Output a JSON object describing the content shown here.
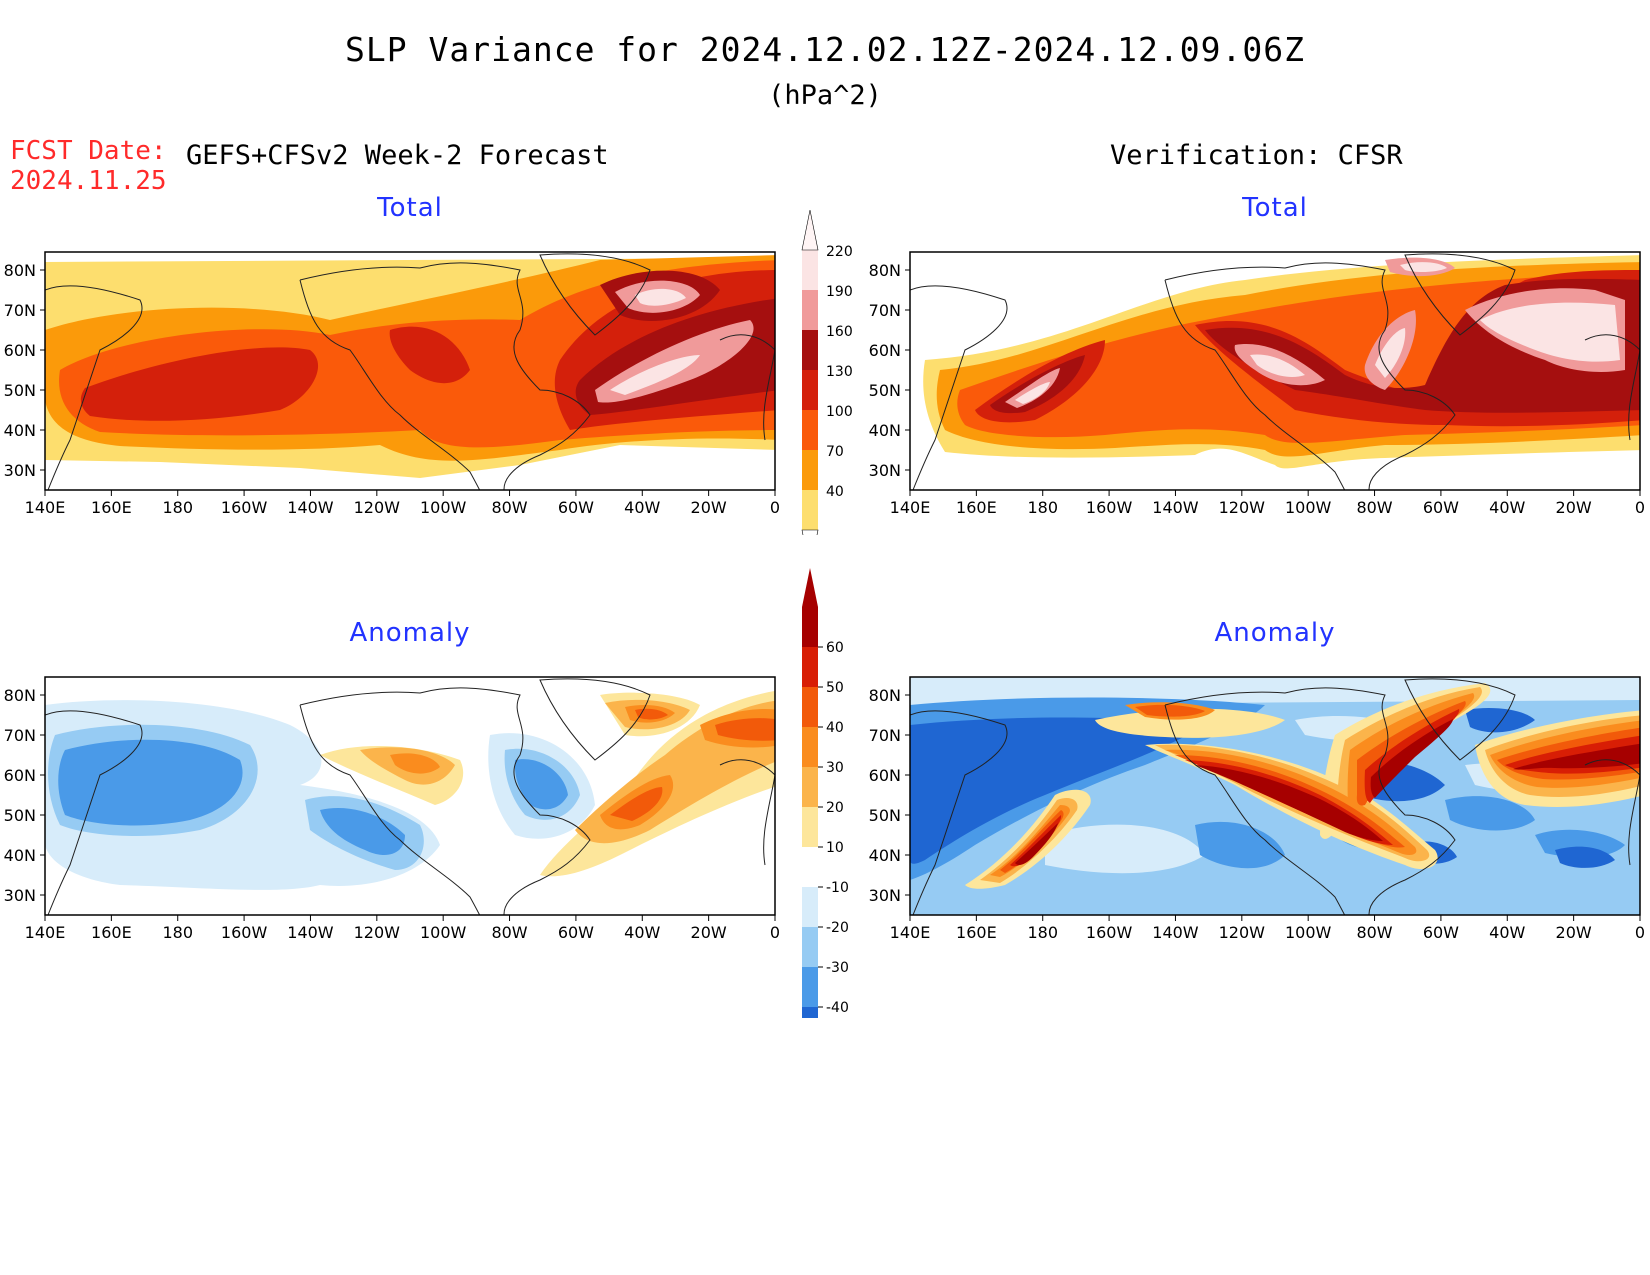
{
  "header": {
    "title": "SLP Variance for 2024.12.02.12Z-2024.12.09.06Z",
    "units": "(hPa^2)",
    "fcst_label": "FCST Date:",
    "fcst_date": "2024.11.25",
    "left_title": "GEFS+CFSv2 Week-2 Forecast",
    "right_title": "Verification: CFSR"
  },
  "panels": [
    {
      "id": "fcst-total",
      "subtitle": "Total"
    },
    {
      "id": "verif-total",
      "subtitle": "Total"
    },
    {
      "id": "fcst-anomaly",
      "subtitle": "Anomaly"
    },
    {
      "id": "verif-anomaly",
      "subtitle": "Anomaly"
    }
  ],
  "axes": {
    "lat_labels": [
      "80N",
      "70N",
      "60N",
      "50N",
      "40N",
      "30N"
    ],
    "lon_labels": [
      "140E",
      "160E",
      "180",
      "160W",
      "140W",
      "120W",
      "100W",
      "80W",
      "60W",
      "40W",
      "20W",
      "0"
    ]
  },
  "total_colorbar": {
    "labels": [
      "220",
      "190",
      "160",
      "130",
      "100",
      "70",
      "40"
    ],
    "colors": [
      "#fbe4e4",
      "#f09a9a",
      "#a50f0f",
      "#d4200b",
      "#fa5a0a",
      "#fb9a0a",
      "#fdde6e"
    ]
  },
  "anomaly_colorbar": {
    "labels": [
      "60",
      "50",
      "40",
      "30",
      "20",
      "10",
      "-10",
      "-20",
      "-30",
      "-40"
    ],
    "colors": [
      "#a60000",
      "#d81e05",
      "#f25a0a",
      "#fa8c1e",
      "#fbb44b",
      "#fde69b",
      "#ffffff",
      "#d7ecfa",
      "#96cbf3",
      "#4a9ae8",
      "#1f66d2"
    ]
  },
  "colors": {
    "fcst_date": "#ff2a2a",
    "subtitle": "#2233ff"
  }
}
